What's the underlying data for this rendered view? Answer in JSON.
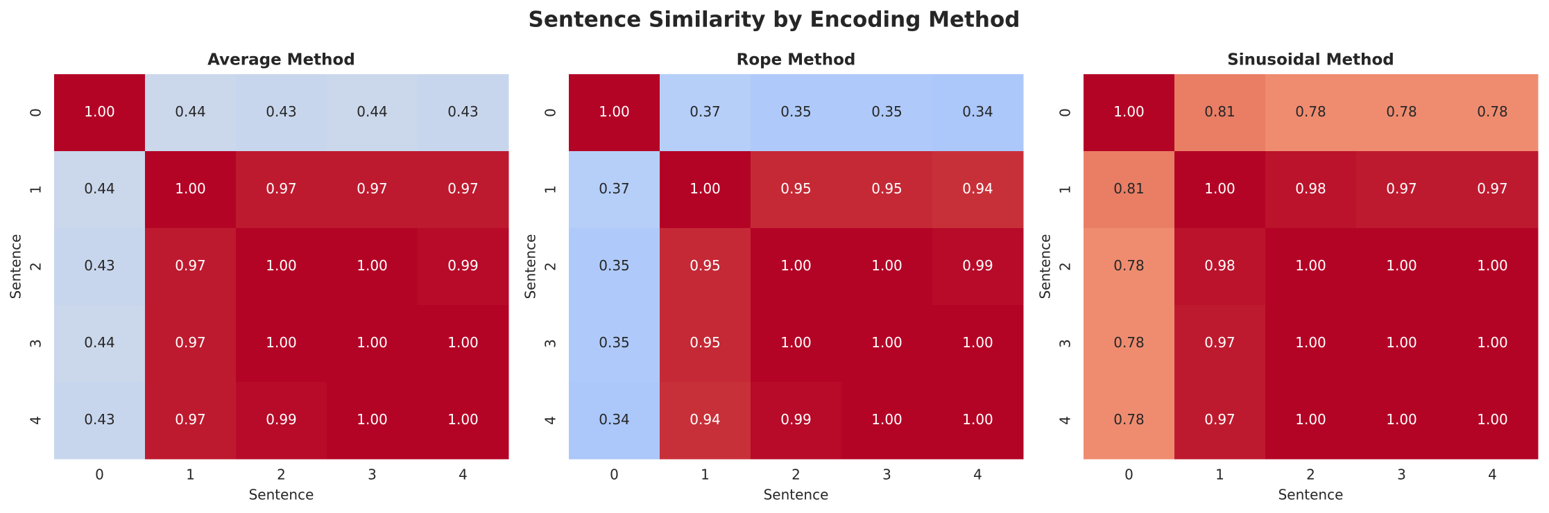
{
  "title": "Sentence Similarity by Encoding Method",
  "chart_data": [
    {
      "type": "heatmap",
      "title": "Average Method",
      "xlabel": "Sentence",
      "ylabel": "Sentence",
      "x_categories": [
        "0",
        "1",
        "2",
        "3",
        "4"
      ],
      "y_categories": [
        "0",
        "1",
        "2",
        "3",
        "4"
      ],
      "colormap": "coolwarm",
      "vlim": [
        0,
        1
      ],
      "values": [
        [
          1,
          0.44,
          0.43,
          0.44,
          0.43
        ],
        [
          0.44,
          1,
          0.97,
          0.97,
          0.97
        ],
        [
          0.43,
          0.97,
          1,
          1,
          0.99
        ],
        [
          0.44,
          0.97,
          1,
          1,
          1
        ],
        [
          0.43,
          0.97,
          0.99,
          1,
          1
        ]
      ],
      "value_labels": [
        [
          "1.00",
          "0.44",
          "0.43",
          "0.44",
          "0.43"
        ],
        [
          "0.44",
          "1.00",
          "0.97",
          "0.97",
          "0.97"
        ],
        [
          "0.43",
          "0.97",
          "1.00",
          "1.00",
          "0.99"
        ],
        [
          "0.44",
          "0.97",
          "1.00",
          "1.00",
          "1.00"
        ],
        [
          "0.43",
          "0.97",
          "0.99",
          "1.00",
          "1.00"
        ]
      ]
    },
    {
      "type": "heatmap",
      "title": "Rope Method",
      "xlabel": "Sentence",
      "ylabel": "Sentence",
      "x_categories": [
        "0",
        "1",
        "2",
        "3",
        "4"
      ],
      "y_categories": [
        "0",
        "1",
        "2",
        "3",
        "4"
      ],
      "colormap": "coolwarm",
      "vlim": [
        0,
        1
      ],
      "values": [
        [
          1,
          0.37,
          0.35,
          0.35,
          0.34
        ],
        [
          0.37,
          1,
          0.95,
          0.95,
          0.94
        ],
        [
          0.35,
          0.95,
          1,
          1,
          0.99
        ],
        [
          0.35,
          0.95,
          1,
          1,
          1
        ],
        [
          0.34,
          0.94,
          0.99,
          1,
          1
        ]
      ],
      "value_labels": [
        [
          "1.00",
          "0.37",
          "0.35",
          "0.35",
          "0.34"
        ],
        [
          "0.37",
          "1.00",
          "0.95",
          "0.95",
          "0.94"
        ],
        [
          "0.35",
          "0.95",
          "1.00",
          "1.00",
          "0.99"
        ],
        [
          "0.35",
          "0.95",
          "1.00",
          "1.00",
          "1.00"
        ],
        [
          "0.34",
          "0.94",
          "0.99",
          "1.00",
          "1.00"
        ]
      ]
    },
    {
      "type": "heatmap",
      "title": "Sinusoidal Method",
      "xlabel": "Sentence",
      "ylabel": "Sentence",
      "x_categories": [
        "0",
        "1",
        "2",
        "3",
        "4"
      ],
      "y_categories": [
        "0",
        "1",
        "2",
        "3",
        "4"
      ],
      "colormap": "coolwarm",
      "vlim": [
        0,
        1
      ],
      "values": [
        [
          1,
          0.81,
          0.78,
          0.78,
          0.78
        ],
        [
          0.81,
          1,
          0.98,
          0.97,
          0.97
        ],
        [
          0.78,
          0.98,
          1,
          1,
          1
        ],
        [
          0.78,
          0.97,
          1,
          1,
          1
        ],
        [
          0.78,
          0.97,
          1,
          1,
          1
        ]
      ],
      "value_labels": [
        [
          "1.00",
          "0.81",
          "0.78",
          "0.78",
          "0.78"
        ],
        [
          "0.81",
          "1.00",
          "0.98",
          "0.97",
          "0.97"
        ],
        [
          "0.78",
          "0.98",
          "1.00",
          "1.00",
          "1.00"
        ],
        [
          "0.78",
          "0.97",
          "1.00",
          "1.00",
          "1.00"
        ],
        [
          "0.78",
          "0.97",
          "1.00",
          "1.00",
          "1.00"
        ]
      ]
    }
  ]
}
